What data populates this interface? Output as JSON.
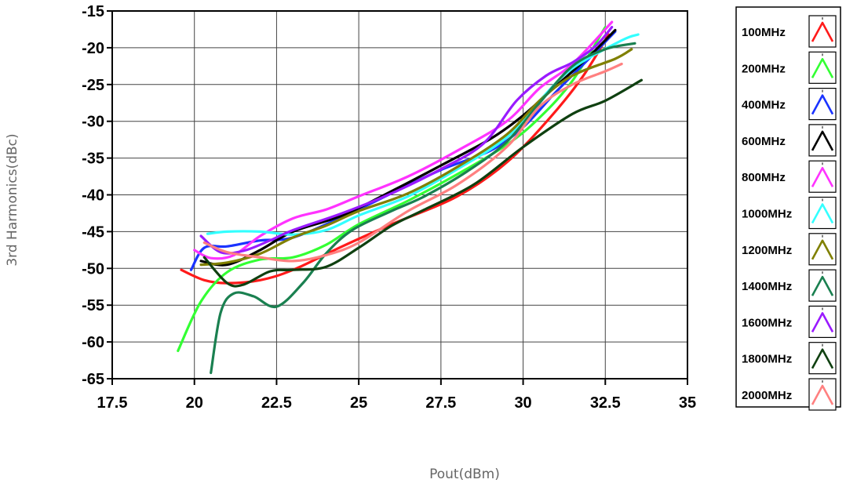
{
  "chart_data": {
    "type": "line",
    "xlabel": "Pout(dBm)",
    "ylabel": "3rd Harmonics(dBc)",
    "xlim": [
      17.5,
      35
    ],
    "ylim": [
      -65,
      -15
    ],
    "xticks": [
      "17.5",
      "20",
      "22.5",
      "25",
      "27.5",
      "30",
      "32.5",
      "35"
    ],
    "yticks": [
      "-15",
      "-20",
      "-25",
      "-30",
      "-35",
      "-40",
      "-45",
      "-50",
      "-55",
      "-60",
      "-65"
    ],
    "grid": true,
    "legend_position": "right",
    "series": [
      {
        "name": "100MHz",
        "color": "#ff1a1a",
        "points": [
          [
            19.6,
            -50.2
          ],
          [
            20.3,
            -51.6
          ],
          [
            21.0,
            -52.0
          ],
          [
            22.0,
            -51.6
          ],
          [
            23.0,
            -50.2
          ],
          [
            24.5,
            -47.0
          ],
          [
            26.0,
            -44.0
          ],
          [
            28.0,
            -40.2
          ],
          [
            29.5,
            -35.6
          ],
          [
            30.8,
            -29.6
          ],
          [
            31.8,
            -24.0
          ],
          [
            32.6,
            -18.2
          ]
        ]
      },
      {
        "name": "200MHz",
        "color": "#33ff33",
        "points": [
          [
            19.5,
            -61.2
          ],
          [
            20.2,
            -54.5
          ],
          [
            21.0,
            -50.5
          ],
          [
            22.0,
            -48.8
          ],
          [
            23.0,
            -48.5
          ],
          [
            24.0,
            -46.8
          ],
          [
            25.0,
            -44.0
          ],
          [
            26.5,
            -40.8
          ],
          [
            28.0,
            -37.2
          ],
          [
            29.5,
            -33.2
          ],
          [
            30.5,
            -29.5
          ],
          [
            31.5,
            -24.5
          ],
          [
            32.5,
            -17.2
          ]
        ]
      },
      {
        "name": "400MHz",
        "color": "#1a33ff",
        "points": [
          [
            19.9,
            -50.2
          ],
          [
            20.3,
            -47.2
          ],
          [
            21.0,
            -47.0
          ],
          [
            22.0,
            -46.2
          ],
          [
            23.0,
            -45.8
          ],
          [
            24.5,
            -43.0
          ],
          [
            26.0,
            -39.8
          ],
          [
            27.5,
            -36.6
          ],
          [
            29.0,
            -34.0
          ],
          [
            30.0,
            -30.8
          ],
          [
            31.0,
            -26.0
          ],
          [
            32.0,
            -21.5
          ],
          [
            32.8,
            -17.8
          ]
        ]
      },
      {
        "name": "600MHz",
        "color": "#000000",
        "points": [
          [
            20.2,
            -49.0
          ],
          [
            21.0,
            -49.5
          ],
          [
            22.0,
            -47.5
          ],
          [
            23.0,
            -45.0
          ],
          [
            24.5,
            -42.8
          ],
          [
            26.0,
            -39.5
          ],
          [
            27.5,
            -36.0
          ],
          [
            29.0,
            -32.4
          ],
          [
            30.0,
            -29.2
          ],
          [
            31.0,
            -25.2
          ],
          [
            32.0,
            -21.2
          ],
          [
            32.8,
            -17.6
          ]
        ]
      },
      {
        "name": "800MHz",
        "color": "#ff33ff",
        "points": [
          [
            20.0,
            -47.5
          ],
          [
            20.5,
            -48.6
          ],
          [
            21.2,
            -48.2
          ],
          [
            22.0,
            -45.6
          ],
          [
            23.0,
            -43.2
          ],
          [
            24.0,
            -42.0
          ],
          [
            25.0,
            -40.2
          ],
          [
            26.5,
            -37.5
          ],
          [
            28.0,
            -34.0
          ],
          [
            29.5,
            -30.0
          ],
          [
            30.5,
            -25.5
          ],
          [
            31.5,
            -22.2
          ],
          [
            32.7,
            -16.5
          ]
        ]
      },
      {
        "name": "1000MHz",
        "color": "#33ffff",
        "points": [
          [
            20.4,
            -45.3
          ],
          [
            21.0,
            -45.0
          ],
          [
            22.0,
            -45.0
          ],
          [
            23.0,
            -45.4
          ],
          [
            24.0,
            -44.8
          ],
          [
            25.0,
            -42.8
          ],
          [
            26.5,
            -40.2
          ],
          [
            28.0,
            -36.5
          ],
          [
            29.5,
            -32.2
          ],
          [
            30.5,
            -27.2
          ],
          [
            31.5,
            -22.8
          ],
          [
            33.0,
            -19.0
          ],
          [
            33.5,
            -18.2
          ]
        ]
      },
      {
        "name": "1200MHz",
        "color": "#808000",
        "points": [
          [
            20.2,
            -49.5
          ],
          [
            21.0,
            -49.2
          ],
          [
            22.0,
            -48.0
          ],
          [
            23.0,
            -45.8
          ],
          [
            24.0,
            -44.2
          ],
          [
            25.0,
            -42.2
          ],
          [
            26.5,
            -39.8
          ],
          [
            28.0,
            -36.2
          ],
          [
            29.5,
            -31.8
          ],
          [
            30.5,
            -27.2
          ],
          [
            31.5,
            -23.8
          ],
          [
            32.8,
            -21.5
          ],
          [
            33.3,
            -20.2
          ]
        ]
      },
      {
        "name": "1400MHz",
        "color": "#1a8050",
        "points": [
          [
            20.5,
            -64.2
          ],
          [
            20.8,
            -56.0
          ],
          [
            21.2,
            -53.4
          ],
          [
            21.8,
            -53.8
          ],
          [
            22.5,
            -55.2
          ],
          [
            23.3,
            -52.0
          ],
          [
            24.0,
            -48.0
          ],
          [
            24.8,
            -44.8
          ],
          [
            26.0,
            -42.2
          ],
          [
            27.0,
            -40.2
          ],
          [
            28.3,
            -36.8
          ],
          [
            29.5,
            -32.8
          ],
          [
            30.5,
            -27.5
          ],
          [
            31.5,
            -22.5
          ],
          [
            32.5,
            -20.2
          ],
          [
            33.4,
            -19.4
          ]
        ]
      },
      {
        "name": "1600MHz",
        "color": "#9a1aff",
        "points": [
          [
            20.2,
            -45.6
          ],
          [
            20.8,
            -47.8
          ],
          [
            21.5,
            -47.6
          ],
          [
            22.3,
            -46.2
          ],
          [
            23.0,
            -44.8
          ],
          [
            24.5,
            -42.5
          ],
          [
            26.0,
            -39.8
          ],
          [
            27.5,
            -36.5
          ],
          [
            28.8,
            -33.0
          ],
          [
            29.8,
            -27.2
          ],
          [
            30.7,
            -23.8
          ],
          [
            31.5,
            -22.0
          ],
          [
            32.2,
            -19.8
          ],
          [
            32.7,
            -17.2
          ]
        ]
      },
      {
        "name": "1800MHz",
        "color": "#0f4010",
        "points": [
          [
            20.3,
            -48.5
          ],
          [
            21.0,
            -52.0
          ],
          [
            21.5,
            -52.2
          ],
          [
            22.3,
            -50.4
          ],
          [
            23.0,
            -50.2
          ],
          [
            24.0,
            -49.8
          ],
          [
            25.0,
            -47.2
          ],
          [
            26.0,
            -44.2
          ],
          [
            27.0,
            -42.0
          ],
          [
            28.5,
            -38.6
          ],
          [
            30.0,
            -33.5
          ],
          [
            31.5,
            -29.0
          ],
          [
            32.5,
            -27.2
          ],
          [
            33.6,
            -24.4
          ]
        ]
      },
      {
        "name": "2000MHz",
        "color": "#ff8080",
        "points": [
          [
            20.3,
            -46.5
          ],
          [
            21.0,
            -47.8
          ],
          [
            22.0,
            -48.5
          ],
          [
            23.0,
            -49.0
          ],
          [
            24.0,
            -48.2
          ],
          [
            25.0,
            -46.5
          ],
          [
            26.5,
            -42.2
          ],
          [
            28.0,
            -38.6
          ],
          [
            29.5,
            -33.5
          ],
          [
            30.5,
            -28.0
          ],
          [
            31.5,
            -25.0
          ],
          [
            32.5,
            -23.2
          ],
          [
            33.0,
            -22.2
          ]
        ]
      }
    ]
  }
}
